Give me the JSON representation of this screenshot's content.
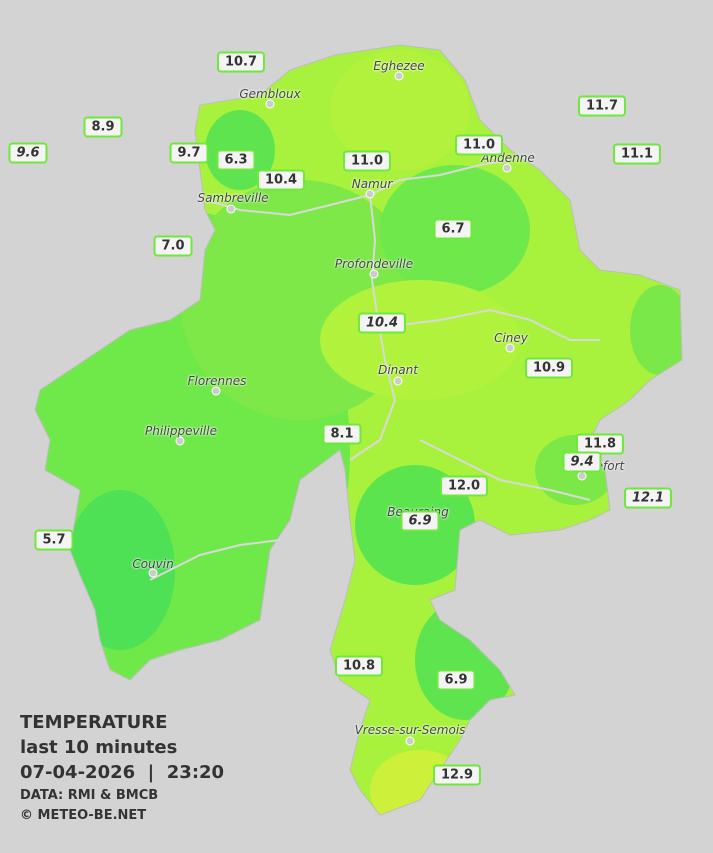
{
  "stations": [
    {
      "label": "10.7",
      "italic": false
    },
    {
      "label": "8.9",
      "italic": false
    },
    {
      "label": "9.6",
      "italic": true
    },
    {
      "label": "9.7",
      "italic": false
    },
    {
      "label": "6.3",
      "italic": false
    },
    {
      "label": "10.4",
      "italic": false
    },
    {
      "label": "11.0",
      "italic": false
    },
    {
      "label": "11.0",
      "italic": false
    },
    {
      "label": "11.7",
      "italic": false
    },
    {
      "label": "11.1",
      "italic": false
    },
    {
      "label": "7.0",
      "italic": false
    },
    {
      "label": "6.7",
      "italic": false
    },
    {
      "label": "10.4",
      "italic": true
    },
    {
      "label": "10.9",
      "italic": false
    },
    {
      "label": "8.1",
      "italic": false
    },
    {
      "label": "11.8",
      "italic": false
    },
    {
      "label": "9.4",
      "italic": true
    },
    {
      "label": "12.0",
      "italic": false
    },
    {
      "label": "12.1",
      "italic": true
    },
    {
      "label": "6.9",
      "italic": true
    },
    {
      "label": "5.7",
      "italic": false
    },
    {
      "label": "10.8",
      "italic": false
    },
    {
      "label": "6.9",
      "italic": false
    },
    {
      "label": "12.9",
      "italic": false
    }
  ],
  "cities": [
    "Eghezee",
    "Gembloux",
    "Andenne",
    "Namur",
    "Sambreville",
    "Profondeville",
    "Ciney",
    "Dinant",
    "Florennes",
    "Philippeville",
    "Rochefort",
    "Beauraing",
    "Couvin",
    "Vresse-sur-Semois"
  ],
  "legend": {
    "title": "TEMPERATURE",
    "subtitle": "last 10 minutes",
    "datetime": "07-04-2026  |  23:20",
    "source": "DATA: RMI & BMCB",
    "credit": "© METEO-BE.NET"
  }
}
